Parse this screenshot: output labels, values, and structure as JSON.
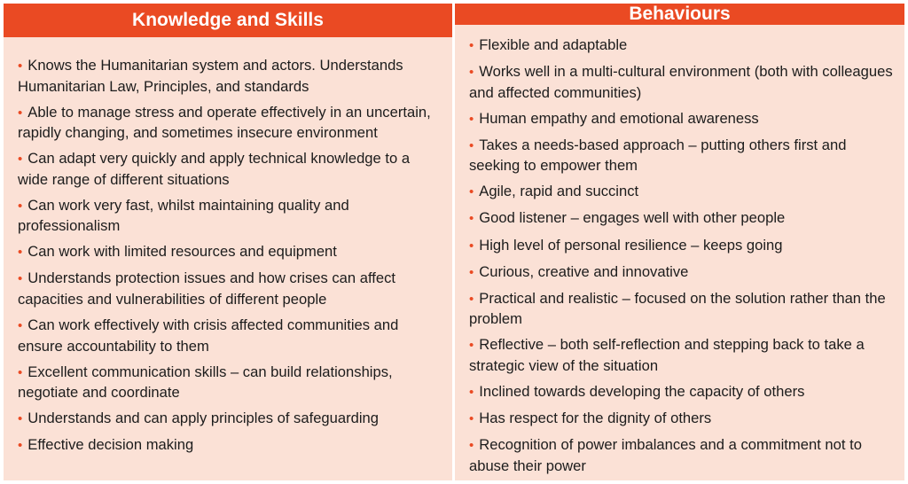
{
  "left": {
    "header": "Knowledge and Skills",
    "bullet": "•",
    "items": [
      "Knows the Humanitarian system and actors. Understands Humanitarian Law, Principles, and standards",
      "Able to manage stress and operate effectively in an uncertain, rapidly changing, and sometimes insecure environment",
      "Can adapt very quickly and apply technical knowledge to a wide range of different situations",
      "Can work very fast, whilst maintaining quality and professionalism",
      "Can work with limited resources and equipment",
      "Understands protection issues and how crises can affect capacities and vulnerabilities of different people",
      "Can work effectively with crisis affected communities and ensure accountability to them",
      "Excellent communication skills – can build relationships, negotiate and coordinate",
      "Understands and can apply principles of safeguarding",
      "Effective decision making"
    ]
  },
  "right": {
    "header": "Behaviours",
    "bullet": "•",
    "items": [
      "Flexible and adaptable",
      "Works well in a multi-cultural environment (both with colleagues and affected communities)",
      "Human empathy and emotional awareness",
      "Takes a needs-based approach – putting others first and seeking to empower them",
      "Agile, rapid and succinct",
      "Good listener – engages well with other people",
      "High level of personal resilience – keeps going",
      "Curious, creative and innovative",
      "Practical and realistic – focused on the solution rather than the problem",
      "Reflective – both self-reflection and stepping back to take a strategic view of the situation",
      "Inclined towards developing the capacity of others",
      "Has respect for the dignity of others",
      "Recognition of power imbalances and a commitment not to abuse their power"
    ]
  },
  "colors": {
    "header_bg": "#ea4a23",
    "cell_bg": "#fbe1d6",
    "bullet": "#ea4a23"
  }
}
